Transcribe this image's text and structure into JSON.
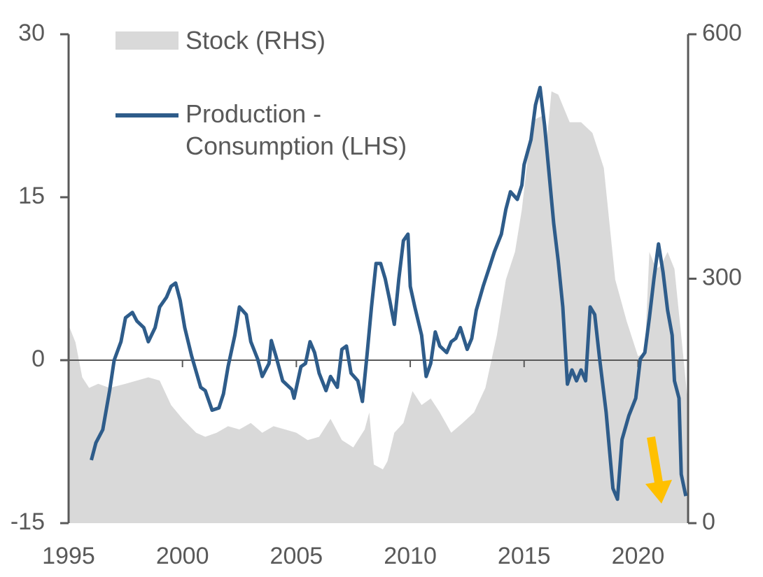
{
  "chart_data": {
    "type": "line",
    "xlim": [
      1995,
      2022.2
    ],
    "xticks": [
      1995,
      2000,
      2005,
      2010,
      2015,
      2020
    ],
    "ylim": [
      -15,
      30
    ],
    "yticks": [
      -15,
      0,
      15,
      30
    ],
    "y2lim": [
      0,
      600
    ],
    "y2ticks": [
      0,
      300,
      600
    ],
    "series": [
      {
        "name": "Stock (RHS)",
        "type": "area",
        "axis": "y2",
        "color": "#d9d9d9",
        "x": [
          1995.0,
          1995.3,
          1995.6,
          1995.9,
          1996.3,
          1996.8,
          1997.5,
          1998.0,
          1998.5,
          1999.0,
          1999.5,
          2000.0,
          2000.6,
          2001.0,
          2001.5,
          2002.0,
          2002.5,
          2003.0,
          2003.5,
          2004.0,
          2004.5,
          2005.0,
          2005.5,
          2006.0,
          2006.5,
          2007.0,
          2007.5,
          2008.0,
          2008.2,
          2008.4,
          2008.8,
          2009.0,
          2009.3,
          2009.7,
          2010.1,
          2010.5,
          2010.9,
          2011.3,
          2011.8,
          2012.3,
          2012.8,
          2013.3,
          2013.8,
          2014.2,
          2014.6,
          2014.9,
          2015.2,
          2015.5,
          2015.8,
          2016.0,
          2016.2,
          2016.5,
          2017.0,
          2017.5,
          2018.0,
          2018.5,
          2019.0,
          2019.5,
          2020.0,
          2020.3,
          2020.5,
          2020.8,
          2021.0,
          2021.3,
          2021.6,
          2021.9,
          2022.2
        ],
        "values": [
          243,
          222,
          179,
          166,
          171,
          166,
          171,
          175,
          179,
          175,
          145,
          128,
          111,
          106,
          111,
          119,
          115,
          123,
          111,
          119,
          115,
          111,
          102,
          106,
          128,
          102,
          93,
          115,
          136,
          72,
          66,
          76,
          111,
          123,
          162,
          145,
          153,
          136,
          111,
          123,
          136,
          166,
          230,
          299,
          333,
          385,
          458,
          496,
          500,
          470,
          530,
          526,
          492,
          492,
          479,
          436,
          299,
          248,
          205,
          209,
          333,
          312,
          316,
          333,
          312,
          230,
          145
        ]
      },
      {
        "name": "Production - Consumption (LHS)",
        "type": "line",
        "axis": "y",
        "color": "#2e5c8a",
        "x": [
          1996.0,
          1996.2,
          1996.5,
          1996.8,
          1997.0,
          1997.3,
          1997.5,
          1997.8,
          1998.0,
          1998.3,
          1998.5,
          1998.8,
          1999.0,
          1999.3,
          1999.5,
          1999.7,
          1999.9,
          2000.1,
          2000.4,
          2000.8,
          2001.0,
          2001.3,
          2001.6,
          2001.8,
          2002.0,
          2002.3,
          2002.5,
          2002.8,
          2003.0,
          2003.3,
          2003.5,
          2003.8,
          2003.9,
          2004.1,
          2004.4,
          2004.8,
          2004.9,
          2005.2,
          2005.4,
          2005.6,
          2005.8,
          2006.0,
          2006.3,
          2006.5,
          2006.8,
          2007.0,
          2007.2,
          2007.4,
          2007.7,
          2007.9,
          2008.1,
          2008.3,
          2008.5,
          2008.7,
          2008.9,
          2009.1,
          2009.3,
          2009.5,
          2009.7,
          2009.9,
          2010.0,
          2010.2,
          2010.5,
          2010.7,
          2010.9,
          2011.1,
          2011.3,
          2011.6,
          2011.8,
          2012.0,
          2012.2,
          2012.5,
          2012.7,
          2012.9,
          2013.2,
          2013.5,
          2013.7,
          2014.0,
          2014.2,
          2014.4,
          2014.7,
          2014.9,
          2015.0,
          2015.3,
          2015.5,
          2015.7,
          2015.9,
          2016.1,
          2016.3,
          2016.5,
          2016.7,
          2016.9,
          2017.1,
          2017.3,
          2017.5,
          2017.7,
          2017.9,
          2018.1,
          2018.3,
          2018.6,
          2018.9,
          2019.1,
          2019.3,
          2019.6,
          2019.9,
          2020.1,
          2020.3,
          2020.5,
          2020.7,
          2020.9,
          2021.1,
          2021.3,
          2021.5,
          2021.6,
          2021.8,
          2021.9,
          2022.1
        ],
        "values": [
          -9.2,
          -7.6,
          -6.4,
          -2.8,
          0,
          1.7,
          3.9,
          4.4,
          3.6,
          3.0,
          1.7,
          3.0,
          4.9,
          5.8,
          6.8,
          7.1,
          5.5,
          3.0,
          0.4,
          -2.5,
          -2.8,
          -4.6,
          -4.4,
          -3.1,
          -0.6,
          2.3,
          4.9,
          4.2,
          1.7,
          0.1,
          -1.5,
          -0.3,
          1.8,
          0.4,
          -1.9,
          -2.7,
          -3.5,
          -0.6,
          -0.3,
          1.7,
          0.7,
          -1.2,
          -2.8,
          -1.5,
          -2.5,
          1.0,
          1.3,
          -1.2,
          -1.9,
          -3.8,
          0.4,
          4.9,
          8.9,
          8.9,
          7.5,
          5.5,
          3.3,
          7.5,
          11.0,
          11.6,
          6.8,
          4.9,
          2.3,
          -1.5,
          -0.3,
          2.6,
          1.3,
          0.7,
          1.7,
          2.0,
          3.0,
          1.0,
          2.0,
          4.6,
          6.8,
          8.7,
          10.0,
          11.6,
          13.9,
          15.5,
          14.8,
          16.1,
          18.0,
          20.3,
          23.5,
          25.1,
          21.6,
          17.1,
          12.6,
          9.1,
          4.9,
          -2.2,
          -0.9,
          -1.9,
          -0.9,
          -1.9,
          4.9,
          4.2,
          0.4,
          -4.8,
          -11.8,
          -12.8,
          -7.3,
          -5.1,
          -3.5,
          0.1,
          0.7,
          3.9,
          7.5,
          10.7,
          8.1,
          4.6,
          2.3,
          -1.9,
          -3.5,
          -10.5,
          -12.5
        ]
      }
    ]
  }
}
